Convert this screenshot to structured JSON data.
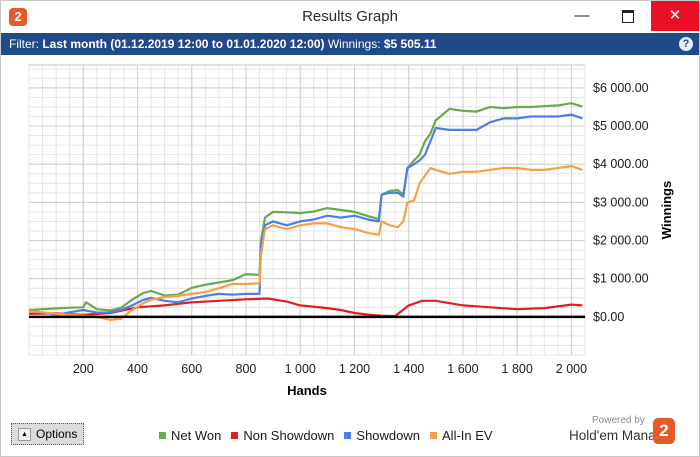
{
  "window": {
    "title": "Results Graph",
    "app_icon_glyph": "2",
    "app_icon_color": "#e65a28",
    "min_glyph": "—",
    "close_glyph": "✕",
    "close_color": "#e81123"
  },
  "filterbar": {
    "bg_color": "#1f4a8a",
    "filter_label": "Filter:",
    "filter_value": "Last month (01.12.2019 12:00 to 01.01.2020 12:00)",
    "winnings_label": "Winnings:",
    "winnings_value": "$5 505.11",
    "help_glyph": "?"
  },
  "chart_data": {
    "type": "line",
    "xlabel": "Hands",
    "ylabel": "Winnings",
    "xlim": [
      0,
      2050
    ],
    "ylim": [
      -1000,
      6600
    ],
    "xticks": [
      200,
      400,
      600,
      800,
      1000,
      1200,
      1400,
      1600,
      1800,
      2000
    ],
    "xtick_labels": [
      "200",
      "400",
      "600",
      "800",
      "1 000",
      "1 200",
      "1 400",
      "1 600",
      "1 800",
      "2 000"
    ],
    "yticks": [
      0,
      1000,
      2000,
      3000,
      4000,
      5000,
      6000
    ],
    "ytick_labels": [
      "$0.00",
      "$1 000.00",
      "$2 000.00",
      "$3 000.00",
      "$4 000.00",
      "$5 000.00",
      "$6 000.00"
    ],
    "grid": true,
    "zero_line": true,
    "series": [
      {
        "name": "Net Won",
        "color": "#6aa84f",
        "x": [
          0,
          50,
          100,
          150,
          200,
          210,
          250,
          300,
          340,
          380,
          420,
          450,
          500,
          550,
          600,
          650,
          700,
          750,
          800,
          850,
          855,
          870,
          900,
          950,
          1000,
          1050,
          1100,
          1150,
          1200,
          1250,
          1290,
          1300,
          1330,
          1360,
          1380,
          1395,
          1420,
          1440,
          1460,
          1480,
          1500,
          1550,
          1600,
          1650,
          1700,
          1750,
          1800,
          1850,
          1900,
          1950,
          2000,
          2040
        ],
        "y": [
          180,
          200,
          220,
          240,
          250,
          380,
          200,
          170,
          240,
          450,
          620,
          680,
          560,
          580,
          760,
          840,
          900,
          960,
          1120,
          1100,
          1980,
          2600,
          2750,
          2740,
          2720,
          2760,
          2850,
          2800,
          2750,
          2640,
          2560,
          3200,
          3300,
          3320,
          3200,
          3900,
          4100,
          4250,
          4600,
          4800,
          5150,
          5450,
          5400,
          5380,
          5500,
          5470,
          5500,
          5500,
          5520,
          5540,
          5600,
          5510
        ]
      },
      {
        "name": "Non Showdown",
        "color": "#e02020",
        "x": [
          0,
          100,
          200,
          300,
          400,
          500,
          600,
          700,
          800,
          880,
          950,
          1000,
          1100,
          1150,
          1200,
          1250,
          1300,
          1350,
          1400,
          1450,
          1500,
          1600,
          1700,
          1800,
          1900,
          2000,
          2040
        ],
        "y": [
          80,
          90,
          50,
          100,
          250,
          300,
          380,
          420,
          460,
          480,
          400,
          300,
          230,
          180,
          100,
          60,
          30,
          20,
          300,
          420,
          420,
          300,
          250,
          200,
          230,
          320,
          300
        ]
      },
      {
        "name": "Showdown",
        "color": "#4a7fe8",
        "x": [
          0,
          50,
          100,
          150,
          200,
          250,
          300,
          340,
          380,
          420,
          450,
          500,
          550,
          600,
          650,
          700,
          750,
          800,
          850,
          855,
          870,
          900,
          950,
          1000,
          1050,
          1100,
          1150,
          1200,
          1250,
          1290,
          1300,
          1330,
          1360,
          1380,
          1395,
          1420,
          1440,
          1460,
          1480,
          1500,
          1550,
          1600,
          1650,
          1700,
          1750,
          1800,
          1850,
          1900,
          1950,
          2000,
          2040
        ],
        "y": [
          150,
          120,
          50,
          120,
          180,
          110,
          120,
          180,
          300,
          440,
          500,
          420,
          380,
          480,
          550,
          600,
          580,
          600,
          600,
          1850,
          2400,
          2500,
          2400,
          2500,
          2550,
          2650,
          2600,
          2650,
          2550,
          2500,
          3200,
          3250,
          3250,
          3150,
          3900,
          4000,
          4100,
          4250,
          4600,
          4950,
          4900,
          4900,
          4900,
          5100,
          5200,
          5200,
          5250,
          5250,
          5250,
          5300,
          5200
        ]
      },
      {
        "name": "All-In EV",
        "color": "#f5a048",
        "x": [
          0,
          50,
          100,
          150,
          200,
          250,
          300,
          340,
          380,
          420,
          450,
          500,
          550,
          600,
          650,
          700,
          750,
          800,
          850,
          855,
          870,
          900,
          950,
          1000,
          1050,
          1100,
          1150,
          1200,
          1250,
          1290,
          1300,
          1330,
          1360,
          1380,
          1395,
          1420,
          1440,
          1460,
          1480,
          1500,
          1550,
          1600,
          1650,
          1700,
          1750,
          1800,
          1850,
          1900,
          1950,
          2000,
          2040
        ],
        "y": [
          150,
          120,
          80,
          50,
          30,
          0,
          -80,
          -50,
          180,
          350,
          450,
          520,
          550,
          600,
          650,
          750,
          860,
          860,
          880,
          1600,
          2300,
          2400,
          2300,
          2400,
          2450,
          2450,
          2350,
          2300,
          2200,
          2150,
          2500,
          2400,
          2350,
          2500,
          3000,
          3050,
          3500,
          3700,
          3900,
          3850,
          3750,
          3800,
          3800,
          3850,
          3900,
          3900,
          3850,
          3850,
          3900,
          3950,
          3850
        ]
      }
    ]
  },
  "legend": {
    "items": [
      {
        "label": "Net Won",
        "color": "#6aa84f"
      },
      {
        "label": "Non Showdown",
        "color": "#e02020"
      },
      {
        "label": "Showdown",
        "color": "#4a7fe8"
      },
      {
        "label": "All-In EV",
        "color": "#f5a048"
      }
    ]
  },
  "options": {
    "label": "Options",
    "glyph": "▲"
  },
  "branding": {
    "powered": "Powered by",
    "name": "Hold'em Manager",
    "logo_glyph": "2",
    "logo_color": "#e65a28"
  }
}
